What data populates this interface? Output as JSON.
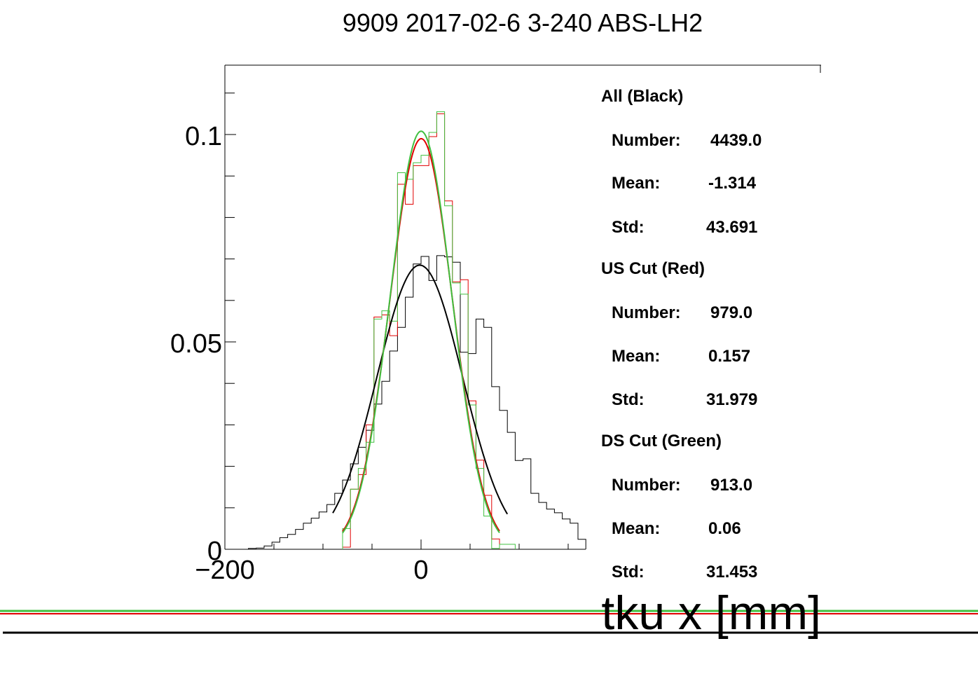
{
  "chart_data": {
    "type": "step-histogram",
    "title": "9909 2017-02-6 3-240 ABS-LH2",
    "xlabel": "tku x [mm]",
    "ylabel": "",
    "xlim": [
      -200,
      200
    ],
    "ylim": [
      0,
      0.11
    ],
    "x_ticks": [
      {
        "value": -200,
        "label": "−200"
      },
      {
        "value": 0,
        "label": "0"
      }
    ],
    "y_ticks": [
      {
        "value": 0,
        "label": "0"
      },
      {
        "value": 0.05,
        "label": "0.05"
      },
      {
        "value": 0.1,
        "label": "0.1"
      }
    ],
    "bin_width": 8,
    "series": [
      {
        "name": "All (Black)",
        "color": "#000000",
        "edges": [
          -176,
          168
        ],
        "values": [
          0.0002,
          0.0003,
          0.0008,
          0.0017,
          0.0028,
          0.0036,
          0.0048,
          0.0063,
          0.0075,
          0.009,
          0.0108,
          0.0135,
          0.0167,
          0.0206,
          0.0246,
          0.0287,
          0.035,
          0.0405,
          0.0478,
          0.0535,
          0.0608,
          0.0688,
          0.0706,
          0.0648,
          0.0708,
          0.0705,
          0.0692,
          0.0475,
          0.0472,
          0.0555,
          0.0535,
          0.0392,
          0.0335,
          0.0282,
          0.0214,
          0.0218,
          0.0135,
          0.0113,
          0.0097,
          0.0088,
          0.0073,
          0.0063,
          0.0024
        ],
        "fit": {
          "mean": -1.314,
          "sigma": 43.691,
          "amplitude": 0.0685,
          "range": [
            -90,
            88
          ]
        },
        "stats": {
          "number_label": "Number:",
          "number": "4439.0",
          "mean_label": "Mean:",
          "mean": "-1.314",
          "std_label": "Std:",
          "std": "43.691"
        }
      },
      {
        "name": "US Cut (Red)",
        "color": "#e00000",
        "edges": [
          -80,
          80
        ],
        "values": [
          0.0005,
          0.0145,
          0.018,
          0.03,
          0.056,
          0.0565,
          0.0515,
          0.088,
          0.0832,
          0.0925,
          0.0925,
          0.0995,
          0.105,
          0.084,
          0.0645,
          0.065,
          0.0358,
          0.0215,
          0.013,
          0.0025
        ],
        "fit": {
          "mean": 0.157,
          "sigma": 31.979,
          "amplitude": 0.099,
          "range": [
            -80,
            80
          ]
        },
        "stats": {
          "number_label": "Number:",
          "number": "979.0",
          "mean_label": "Mean:",
          "mean": "0.157",
          "std_label": "Std:",
          "std": "31.979"
        }
      },
      {
        "name": "DS Cut (Green)",
        "color": "#40c040",
        "edges": [
          -80,
          96
        ],
        "values": [
          0.005,
          0.0145,
          0.0195,
          0.0258,
          0.0555,
          0.0575,
          0.055,
          0.0908,
          0.0892,
          0.0932,
          0.095,
          0.1005,
          0.1055,
          0.0828,
          0.0642,
          0.0615,
          0.0348,
          0.0195,
          0.008,
          0.0002,
          0.0012,
          0.0012
        ],
        "fit": {
          "mean": 0.06,
          "sigma": 31.453,
          "amplitude": 0.1008,
          "range": [
            -80,
            80
          ]
        },
        "stats": {
          "number_label": "Number:",
          "number": "913.0",
          "mean_label": "Mean:",
          "mean": "0.06",
          "std_label": "Std:",
          "std": "31.453"
        }
      }
    ],
    "colors": {
      "axis": "#000000",
      "background": "#ffffff"
    }
  }
}
